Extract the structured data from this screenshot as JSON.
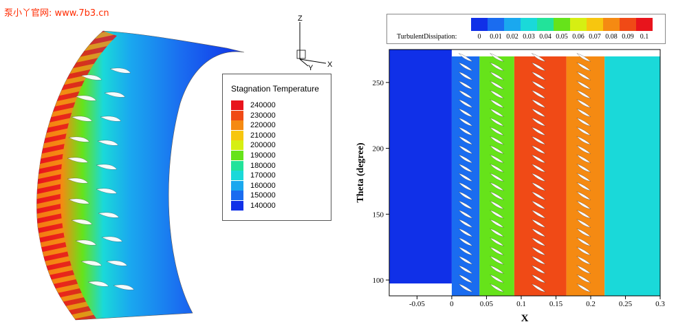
{
  "watermark": "泵小丫官网: www.7b3.cn",
  "left_view": {
    "axis_labels": {
      "z": "Z",
      "y": "Y",
      "x": "X"
    },
    "legend": {
      "title": "Stagnation Temperature",
      "levels": [
        {
          "label": "240000",
          "color": "#e8141c"
        },
        {
          "label": "230000",
          "color": "#f04a16"
        },
        {
          "label": "220000",
          "color": "#f58a12"
        },
        {
          "label": "210000",
          "color": "#f7c60f"
        },
        {
          "label": "200000",
          "color": "#d6ef12"
        },
        {
          "label": "190000",
          "color": "#66e31a"
        },
        {
          "label": "180000",
          "color": "#22e39a"
        },
        {
          "label": "170000",
          "color": "#1ad9d9"
        },
        {
          "label": "160000",
          "color": "#1aa8ef"
        },
        {
          "label": "150000",
          "color": "#1a6cf0"
        },
        {
          "label": "140000",
          "color": "#1030e8"
        }
      ]
    }
  },
  "chart_data": {
    "type": "heatmap",
    "title": "",
    "xlabel": "X",
    "ylabel": "Theta (degree)",
    "xlim": [
      -0.09,
      0.3
    ],
    "ylim": [
      88,
      275
    ],
    "x_ticks": [
      "-0.05",
      "0",
      "0.05",
      "0.1",
      "0.15",
      "0.2",
      "0.25",
      "0.3"
    ],
    "x_tick_values": [
      -0.05,
      0,
      0.05,
      0.1,
      0.15,
      0.2,
      0.25,
      0.3
    ],
    "y_ticks": [
      "100",
      "150",
      "200",
      "250"
    ],
    "y_tick_values": [
      100,
      150,
      200,
      250
    ],
    "colorbar": {
      "title": "TurbulentDissipation:",
      "labels": [
        "0",
        "0.01",
        "0.02",
        "0.03",
        "0.04",
        "0.05",
        "0.06",
        "0.07",
        "0.08",
        "0.09",
        "0.1"
      ],
      "colors": [
        "#1030e8",
        "#1a6cf0",
        "#1aa8ef",
        "#1ad9d9",
        "#22e39a",
        "#66e31a",
        "#d6ef12",
        "#f7c60f",
        "#f58a12",
        "#f04a16",
        "#e8141c"
      ]
    },
    "regions": [
      {
        "x0": -0.09,
        "x1": 0.0,
        "level": 0
      },
      {
        "x0": 0.0,
        "x1": 0.04,
        "level": 1
      },
      {
        "x0": 0.04,
        "x1": 0.09,
        "level": 5
      },
      {
        "x0": 0.09,
        "x1": 0.165,
        "level": 9
      },
      {
        "x0": 0.165,
        "x1": 0.22,
        "level": 8
      },
      {
        "x0": 0.22,
        "x1": 0.3,
        "level": 3
      }
    ]
  }
}
